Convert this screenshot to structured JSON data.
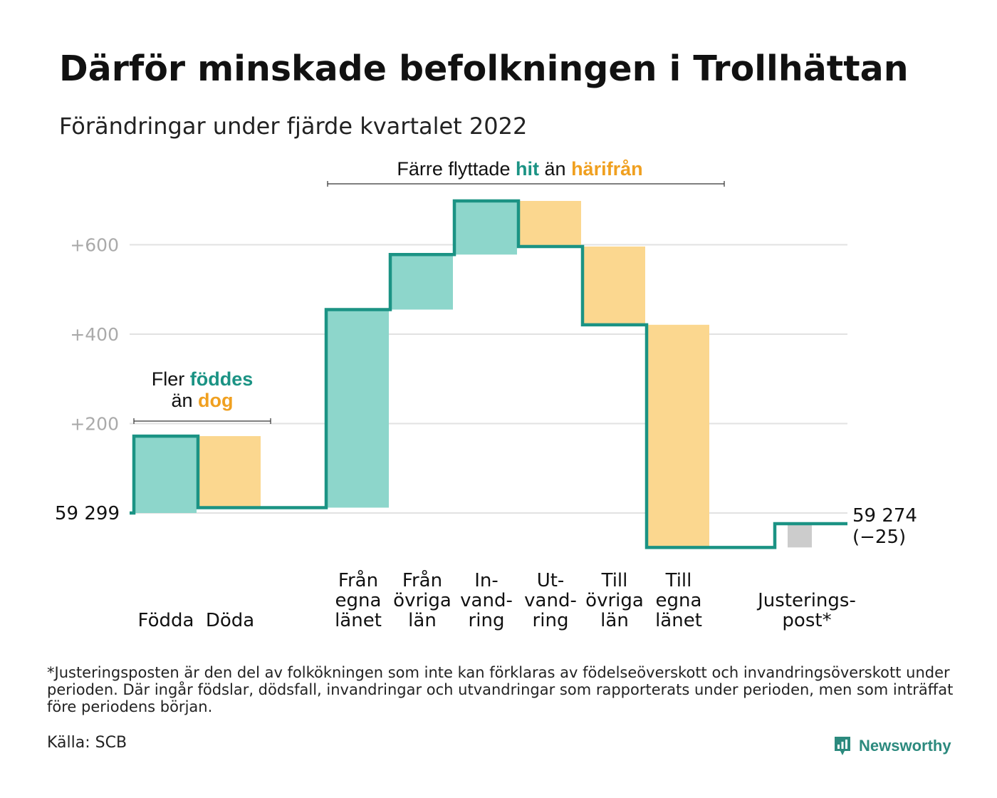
{
  "title": "Därför minskade befolkningen i Trollhättan",
  "subtitle": "Förändringar under fjärde kvartalet 2022",
  "colors": {
    "increase": "#8dd6cb",
    "decrease": "#fbd78f",
    "adjustment": "#cccccc",
    "line": "#1b9384",
    "teal_text": "#1b9384",
    "orange_text": "#f0a020",
    "grid": "#e2e2e2",
    "tick_text": "#aaaaaa"
  },
  "annotations": {
    "migration": {
      "prefix": "Färre flyttade",
      "hit": "hit",
      "mid": "än",
      "harifran": "härifrån"
    },
    "natural": {
      "line1_prefix": "Fler",
      "foddes": "föddes",
      "line2_prefix": "än",
      "dog": "dog"
    }
  },
  "chart_data": {
    "type": "waterfall",
    "baseline_label": "59 299",
    "end_label": [
      "59 274",
      "(−25)"
    ],
    "y_ticks": [
      {
        "value": 200,
        "label": "+200"
      },
      {
        "value": 400,
        "label": "+400"
      },
      {
        "value": 600,
        "label": "+600"
      }
    ],
    "ylim": [
      -100,
      730
    ],
    "steps": [
      {
        "label": [
          "Födda"
        ],
        "change": 172,
        "kind": "increase"
      },
      {
        "label": [
          "Döda"
        ],
        "change": -160,
        "kind": "decrease"
      },
      {
        "label": [
          "Från",
          "egna",
          "länet"
        ],
        "change": 443,
        "kind": "increase",
        "gap_before": true
      },
      {
        "label": [
          "Från",
          "övriga",
          "län"
        ],
        "change": 123,
        "kind": "increase"
      },
      {
        "label": [
          "In-",
          "vand-",
          "ring"
        ],
        "change": 120,
        "kind": "increase"
      },
      {
        "label": [
          "Ut-",
          "vand-",
          "ring"
        ],
        "change": -102,
        "kind": "decrease"
      },
      {
        "label": [
          "Till",
          "övriga",
          "län"
        ],
        "change": -175,
        "kind": "decrease"
      },
      {
        "label": [
          "Till",
          "egna",
          "länet"
        ],
        "change": -498,
        "kind": "decrease"
      },
      {
        "label": [
          "Justerings-",
          "post*"
        ],
        "change": 53,
        "kind": "adjustment",
        "gap_before": true
      }
    ]
  },
  "footnote": "*Justeringsposten är den del av folkökningen som inte kan förklaras av födelseöverskott och invandringsöverskott under perioden. Där ingår födslar, dödsfall, invandringar och utvandringar som rapporterats under perioden, men som inträffat före periodens början.",
  "source": "Källa: SCB",
  "brand": {
    "name": "Newsworthy",
    "icon": "newsworthy-logo-icon"
  }
}
